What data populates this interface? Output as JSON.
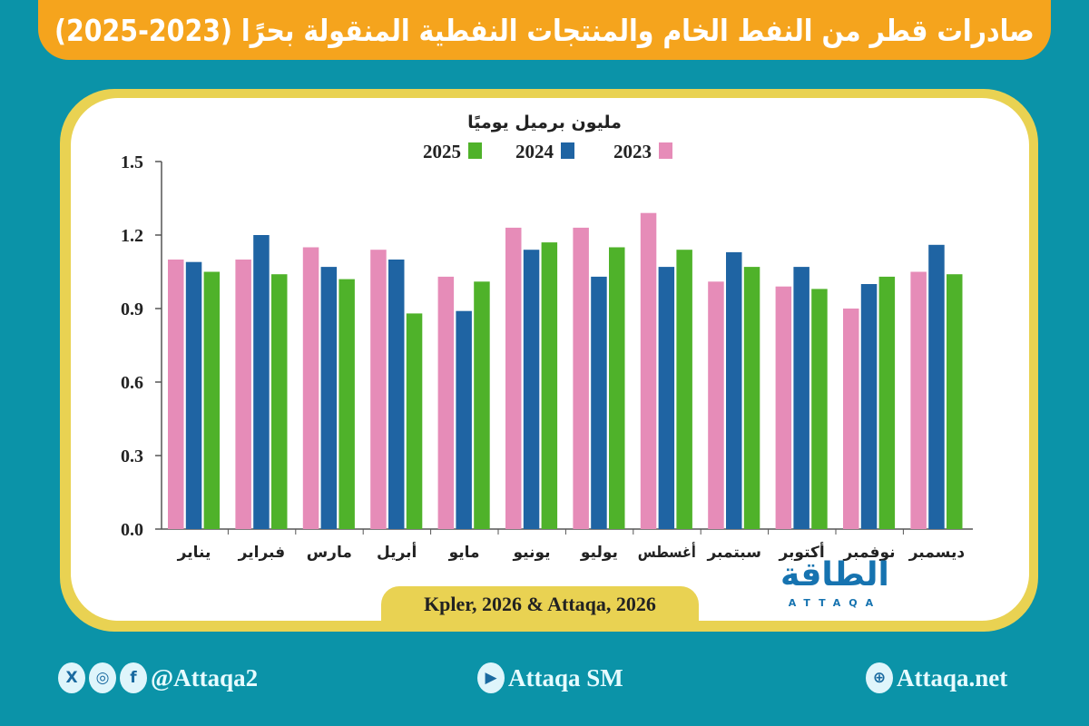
{
  "title": "صادرات قطر من النفط الخام والمنتجات النفطية المنقولة بحرًا (2023-2025)",
  "source": "Kpler, 2026 & Attaqa, 2026",
  "logo": {
    "text": "الطاقة",
    "sub": "ATTAQA"
  },
  "footer": {
    "social": "@Attaqa2",
    "youtube": "Attaqa SM",
    "web": "Attaqa.net"
  },
  "chart_data": {
    "type": "bar",
    "ylabel": "مليون برميل يوميًا",
    "ylim": [
      0,
      1.5
    ],
    "yticks": [
      "0.0",
      "0.3",
      "0.6",
      "0.9",
      "1.2",
      "1.5"
    ],
    "legend_placement": "top",
    "categories": [
      "يناير",
      "فبراير",
      "مارس",
      "أبريل",
      "مايو",
      "يونيو",
      "يوليو",
      "أغسطس",
      "سبتمبر",
      "أكتوبر",
      "نوفمبر",
      "ديسمبر"
    ],
    "series": [
      {
        "name": "2023",
        "color": "#e68cb8",
        "values": [
          1.1,
          1.1,
          1.15,
          1.14,
          1.03,
          1.23,
          1.23,
          1.29,
          1.01,
          0.99,
          0.9,
          1.05
        ]
      },
      {
        "name": "2024",
        "color": "#1f64a3",
        "values": [
          1.09,
          1.2,
          1.07,
          1.1,
          0.89,
          1.14,
          1.03,
          1.07,
          1.13,
          1.07,
          1.0,
          1.16
        ]
      },
      {
        "name": "2025",
        "color": "#4fb22a",
        "values": [
          1.05,
          1.04,
          1.02,
          0.88,
          1.01,
          1.17,
          1.15,
          1.14,
          1.07,
          0.98,
          1.03,
          1.04
        ]
      }
    ]
  }
}
